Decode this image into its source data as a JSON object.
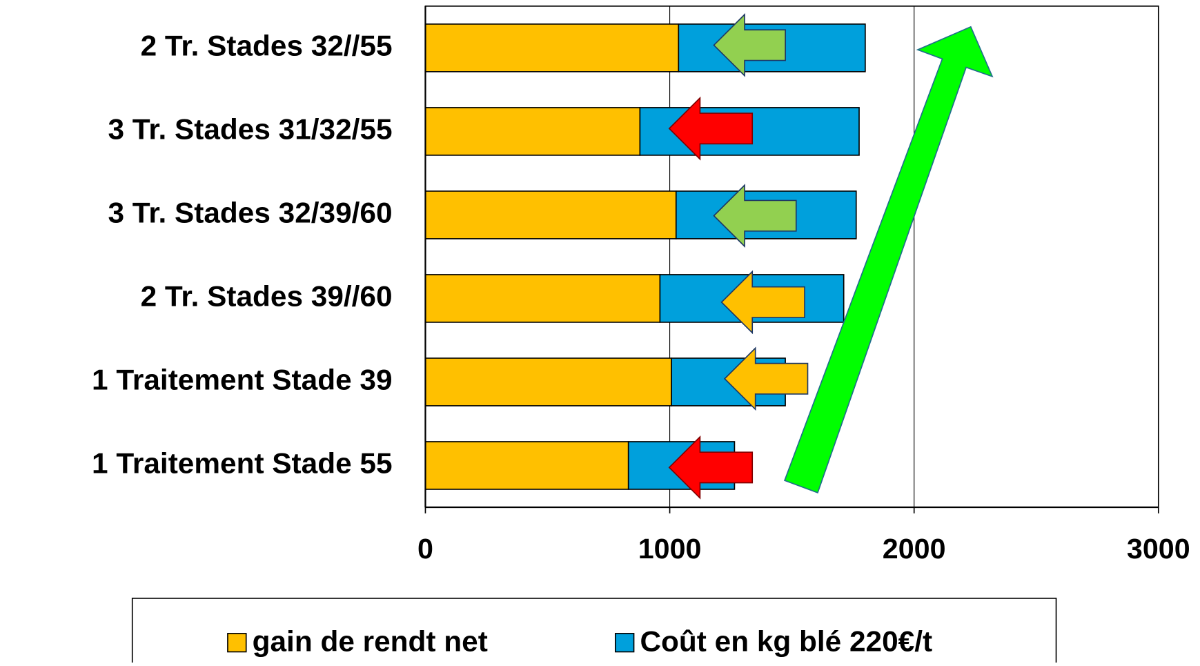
{
  "chart_data": {
    "type": "stacked_barh",
    "categories": [
      "2 Tr. Stades 32//55",
      "3 Tr. Stades 31/32/55",
      "3 Tr. Stades 32/39/60",
      "2 Tr. Stades 39//60",
      "1 Traitement Stade 39",
      "1 Traitement Stade 55"
    ],
    "series": [
      {
        "name": "gain de rendt net",
        "color": "#ffc000",
        "values": [
          1036,
          878,
          1026,
          960,
          1007,
          831
        ]
      },
      {
        "name": "Coût en kg blé 220€/t",
        "color": "#00a0dc",
        "values": [
          764,
          897,
          737,
          752,
          466,
          434
        ]
      }
    ],
    "xlim": [
      0,
      3000
    ],
    "xticks": [
      0,
      1000,
      2000,
      3000
    ],
    "grid": true,
    "legend": "bottom"
  }
}
